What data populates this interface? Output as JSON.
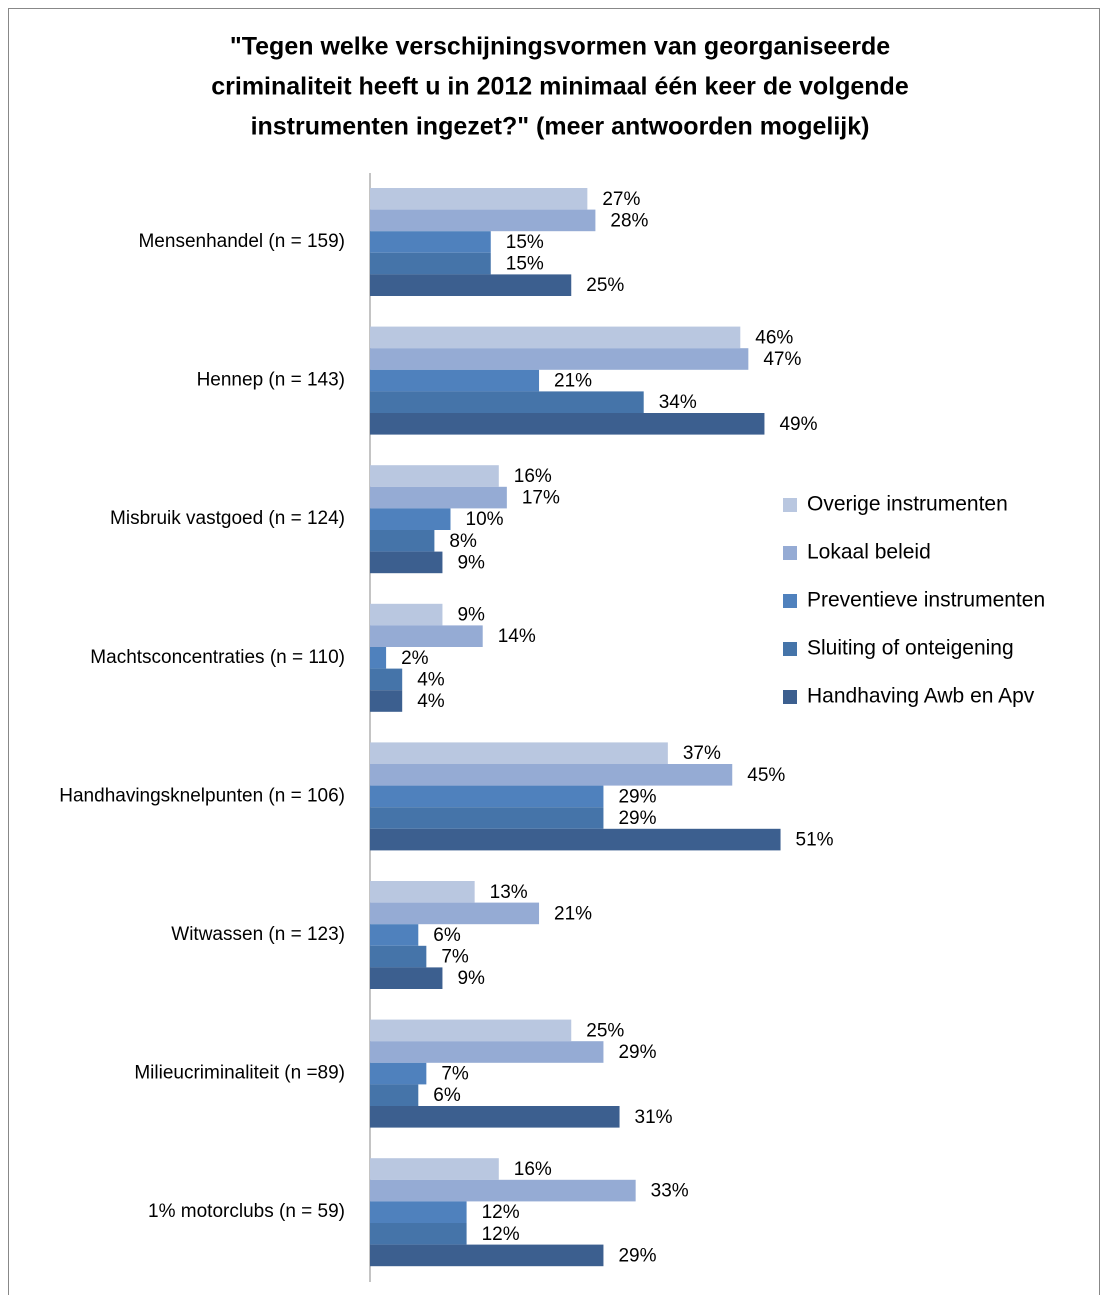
{
  "chart_data": {
    "type": "bar",
    "orientation": "horizontal",
    "title": [
      "\"Tegen welke verschijningsvormen van georganiseerde",
      "criminaliteit heeft u in 2012 minimaal één keer de volgende",
      "instrumenten ingezet?\" (meer antwoorden mogelijk)"
    ],
    "categories": [
      "Mensenhandel (n = 159)",
      "Hennep (n = 143)",
      "Misbruik vastgoed (n = 124)",
      "Machtsconcentraties (n = 110)",
      "Handhavingsknelpunten (n = 106)",
      "Witwassen (n = 123)",
      "Milieucriminaliteit (n =89)",
      "1% motorclubs (n = 59)"
    ],
    "series": [
      {
        "name": "Overige instrumenten",
        "color": "#b9c7e0",
        "values": [
          27,
          46,
          16,
          9,
          37,
          13,
          25,
          16
        ],
        "value_labels": [
          "27%",
          "46%",
          "16%",
          "9%",
          "37%",
          "13%",
          "25%",
          "16%"
        ]
      },
      {
        "name": "Lokaal beleid",
        "color": "#95abd4",
        "values": [
          28,
          47,
          17,
          14,
          45,
          21,
          29,
          33
        ],
        "value_labels": [
          "28%",
          "47%",
          "17%",
          "14%",
          "45%",
          "21%",
          "29%",
          "33%"
        ]
      },
      {
        "name": "Preventieve instrumenten",
        "color": "#4f81bd",
        "values": [
          15,
          21,
          10,
          2,
          29,
          6,
          7,
          12
        ],
        "value_labels": [
          "15%",
          "21%",
          "10%",
          "2%",
          "29%",
          "6%",
          "7%",
          "12%"
        ]
      },
      {
        "name": "Sluiting of onteigening",
        "color": "#4574a9",
        "values": [
          15,
          34,
          8,
          4,
          29,
          7,
          6,
          12
        ],
        "value_labels": [
          "15%",
          "34%",
          "8%",
          "4%",
          "29%",
          "7%",
          "6%",
          "12%"
        ]
      },
      {
        "name": "Handhaving Awb en Apv",
        "color": "#3c5f8f",
        "values": [
          25,
          49,
          9,
          4,
          51,
          9,
          31,
          29
        ],
        "value_labels": [
          "25%",
          "49%",
          "9%",
          "4%",
          "51%",
          "9%",
          "31%",
          "29%"
        ]
      }
    ],
    "legend": "right"
  }
}
